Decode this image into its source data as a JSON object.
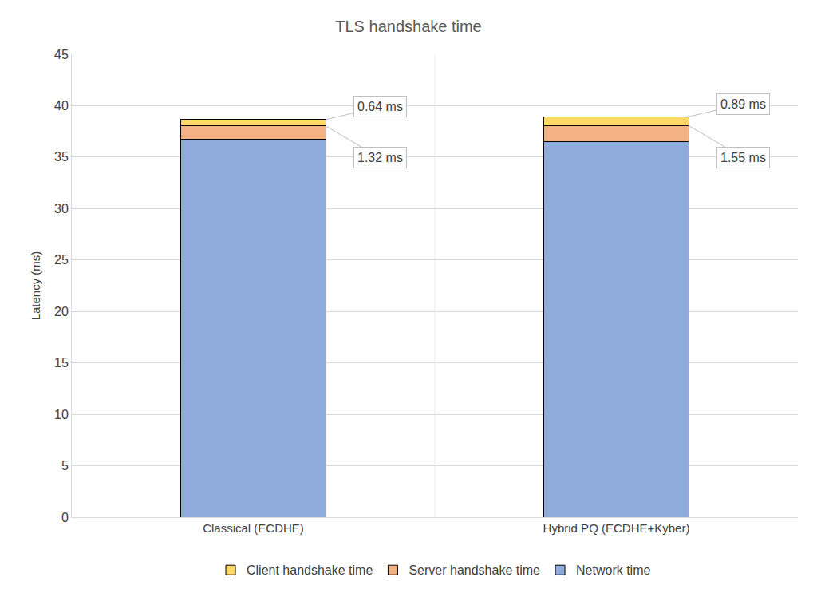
{
  "chart_data": {
    "type": "bar",
    "title": "TLS handshake time",
    "y_label": "Latency (ms)",
    "categories": [
      "Classical (ECDHE)",
      "Hybrid PQ (ECDHE+Kyber)"
    ],
    "stacked": true,
    "series": [
      {
        "name": "Network time",
        "color": "#8faadc",
        "values": [
          36.7,
          36.5
        ]
      },
      {
        "name": "Server handshake time",
        "color": "#f4b183",
        "values": [
          1.32,
          1.55
        ],
        "data_labels": true,
        "value_labels": [
          "1.32 ms",
          "1.55 ms"
        ]
      },
      {
        "name": "Client handshake time",
        "color": "#ffd966",
        "values": [
          0.64,
          0.89
        ],
        "data_labels": true,
        "value_labels": [
          "0.64 ms",
          "0.89 ms"
        ]
      }
    ],
    "ylim": [
      0,
      45
    ],
    "yticks": [
      0,
      5,
      10,
      15,
      20,
      25,
      30,
      35,
      40,
      45
    ],
    "grid": true,
    "legend": "bottom"
  }
}
